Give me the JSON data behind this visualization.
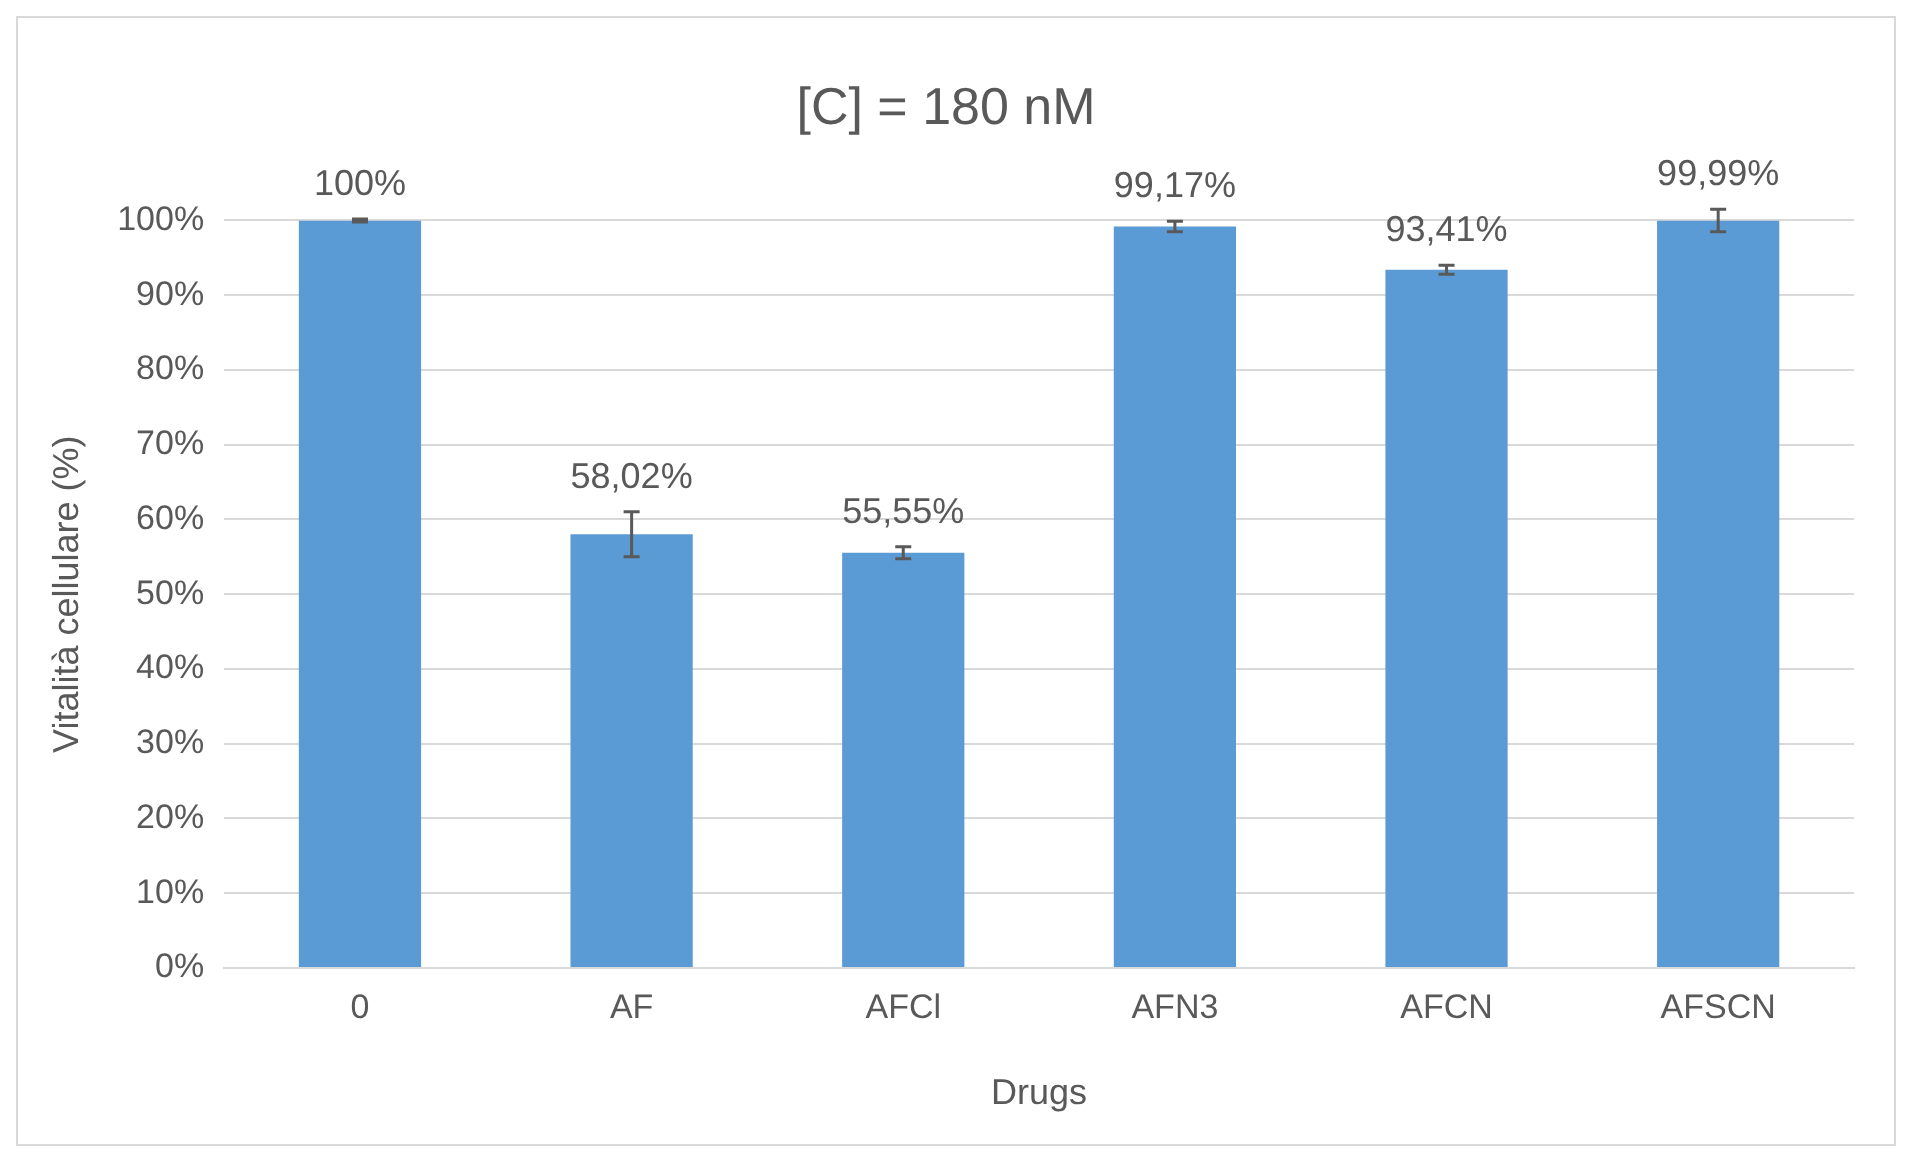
{
  "chart_data": {
    "type": "bar",
    "title": "[C] = 180 nM",
    "xlabel": "Drugs",
    "ylabel": "Vitalità cellulare (%)",
    "categories": [
      "0",
      "AF",
      "AFCl",
      "AFN3",
      "AFCN",
      "AFSCN"
    ],
    "series": [
      {
        "color": "#5b9bd5",
        "values": [
          100,
          58.02,
          55.55,
          99.17,
          93.41,
          99.99
        ],
        "errors": [
          0.2,
          3,
          0.8,
          0.7,
          0.6,
          1.5
        ],
        "value_labels": [
          "100%",
          "58,02%",
          "55,55%",
          "99,17%",
          "93,41%",
          "99,99%"
        ]
      }
    ],
    "ylim": [
      0,
      100
    ],
    "yticks": [
      {
        "value": 0,
        "label": "0%"
      },
      {
        "value": 10,
        "label": "10%"
      },
      {
        "value": 20,
        "label": "20%"
      },
      {
        "value": 30,
        "label": "30%"
      },
      {
        "value": 40,
        "label": "40%"
      },
      {
        "value": 50,
        "label": "50%"
      },
      {
        "value": 60,
        "label": "60%"
      },
      {
        "value": 70,
        "label": "70%"
      },
      {
        "value": 80,
        "label": "80%"
      },
      {
        "value": 90,
        "label": "90%"
      },
      {
        "value": 100,
        "label": "100%"
      }
    ],
    "grid": "y",
    "legend": false
  }
}
